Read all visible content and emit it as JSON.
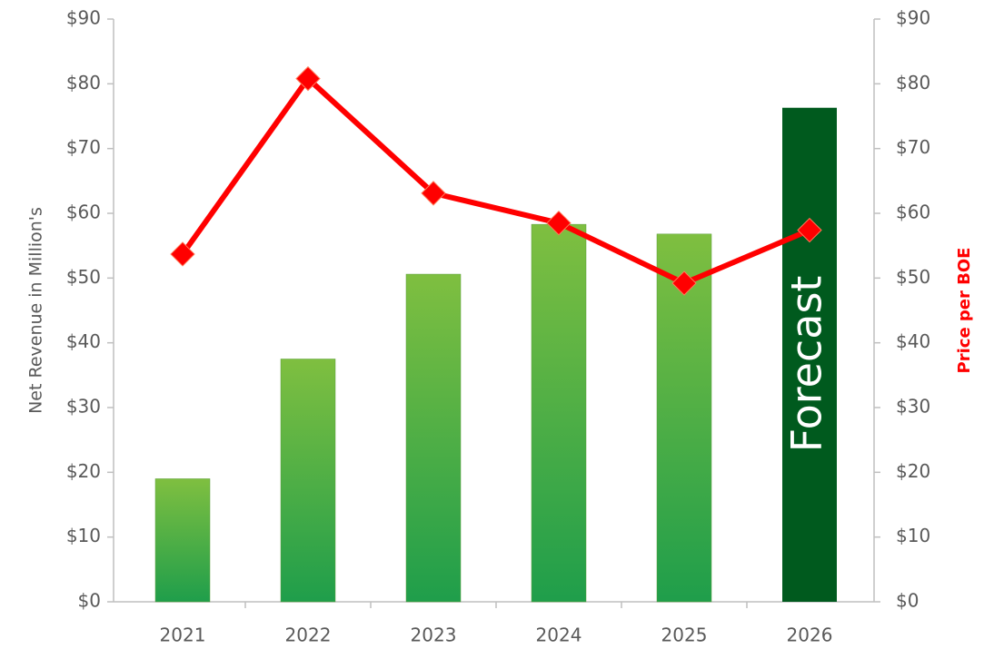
{
  "chart_data": {
    "type": "bar_line",
    "categories": [
      "2021",
      "2022",
      "2023",
      "2024",
      "2025",
      "2026"
    ],
    "series": [
      {
        "type": "bar",
        "color": "#3aa845",
        "values": [
          19,
          37.5,
          50.6,
          58.3,
          56.8,
          76.3
        ]
      },
      {
        "type": "line",
        "axis": "y2",
        "color": "#ff0000",
        "values": [
          53.7,
          80.8,
          63.1,
          58.5,
          49.2,
          57.4
        ]
      }
    ],
    "annotations": [
      {
        "text": "Forecast",
        "category": "2026",
        "color": "#005a1e"
      }
    ],
    "ylabel": "Net Revenue in Million's",
    "y2label": "Price per BOE",
    "ylim": [
      0,
      90
    ],
    "yticks": [
      {
        "value": 0,
        "label": "$0"
      },
      {
        "value": 10,
        "label": "$10"
      },
      {
        "value": 20,
        "label": "$20"
      },
      {
        "value": 30,
        "label": "$30"
      },
      {
        "value": 40,
        "label": "$40"
      },
      {
        "value": 50,
        "label": "$50"
      },
      {
        "value": 60,
        "label": "$60"
      },
      {
        "value": 70,
        "label": "$70"
      },
      {
        "value": 80,
        "label": "$80"
      },
      {
        "value": 90,
        "label": "$90"
      }
    ],
    "y2lim": [
      0,
      90
    ],
    "y2ticks": [
      {
        "value": 0,
        "label": "$0"
      },
      {
        "value": 10,
        "label": "$10"
      },
      {
        "value": 20,
        "label": "$20"
      },
      {
        "value": 30,
        "label": "$30"
      },
      {
        "value": 40,
        "label": "$40"
      },
      {
        "value": 50,
        "label": "$50"
      },
      {
        "value": 60,
        "label": "$60"
      },
      {
        "value": 70,
        "label": "$70"
      },
      {
        "value": 80,
        "label": "$80"
      },
      {
        "value": 90,
        "label": "$90"
      }
    ],
    "grid": false
  }
}
